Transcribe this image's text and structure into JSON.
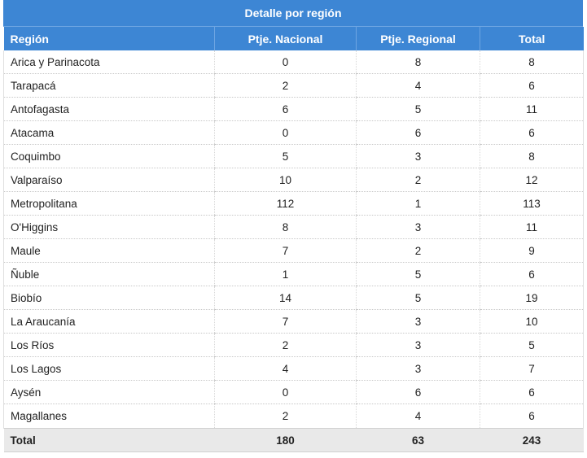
{
  "chart_data": {
    "type": "table",
    "title": "Detalle por región",
    "columns": [
      "Región",
      "Ptje. Nacional",
      "Ptje. Regional",
      "Total"
    ],
    "rows": [
      [
        "Arica y Parinacota",
        0,
        8,
        8
      ],
      [
        "Tarapacá",
        2,
        4,
        6
      ],
      [
        "Antofagasta",
        6,
        5,
        11
      ],
      [
        "Atacama",
        0,
        6,
        6
      ],
      [
        "Coquimbo",
        5,
        3,
        8
      ],
      [
        "Valparaíso",
        10,
        2,
        12
      ],
      [
        "Metropolitana",
        112,
        1,
        113
      ],
      [
        "O'Higgins",
        8,
        3,
        11
      ],
      [
        "Maule",
        7,
        2,
        9
      ],
      [
        "Ñuble",
        1,
        5,
        6
      ],
      [
        "Biobío",
        14,
        5,
        19
      ],
      [
        "La Araucanía",
        7,
        3,
        10
      ],
      [
        "Los Ríos",
        2,
        3,
        5
      ],
      [
        "Los Lagos",
        4,
        3,
        7
      ],
      [
        "Aysén",
        0,
        6,
        6
      ],
      [
        "Magallanes",
        2,
        4,
        6
      ]
    ],
    "totals": [
      "Total",
      180,
      63,
      243
    ]
  },
  "colors": {
    "header_bg": "#3d86d4",
    "header_text": "#ffffff",
    "total_row_bg": "#e9e9e9"
  }
}
